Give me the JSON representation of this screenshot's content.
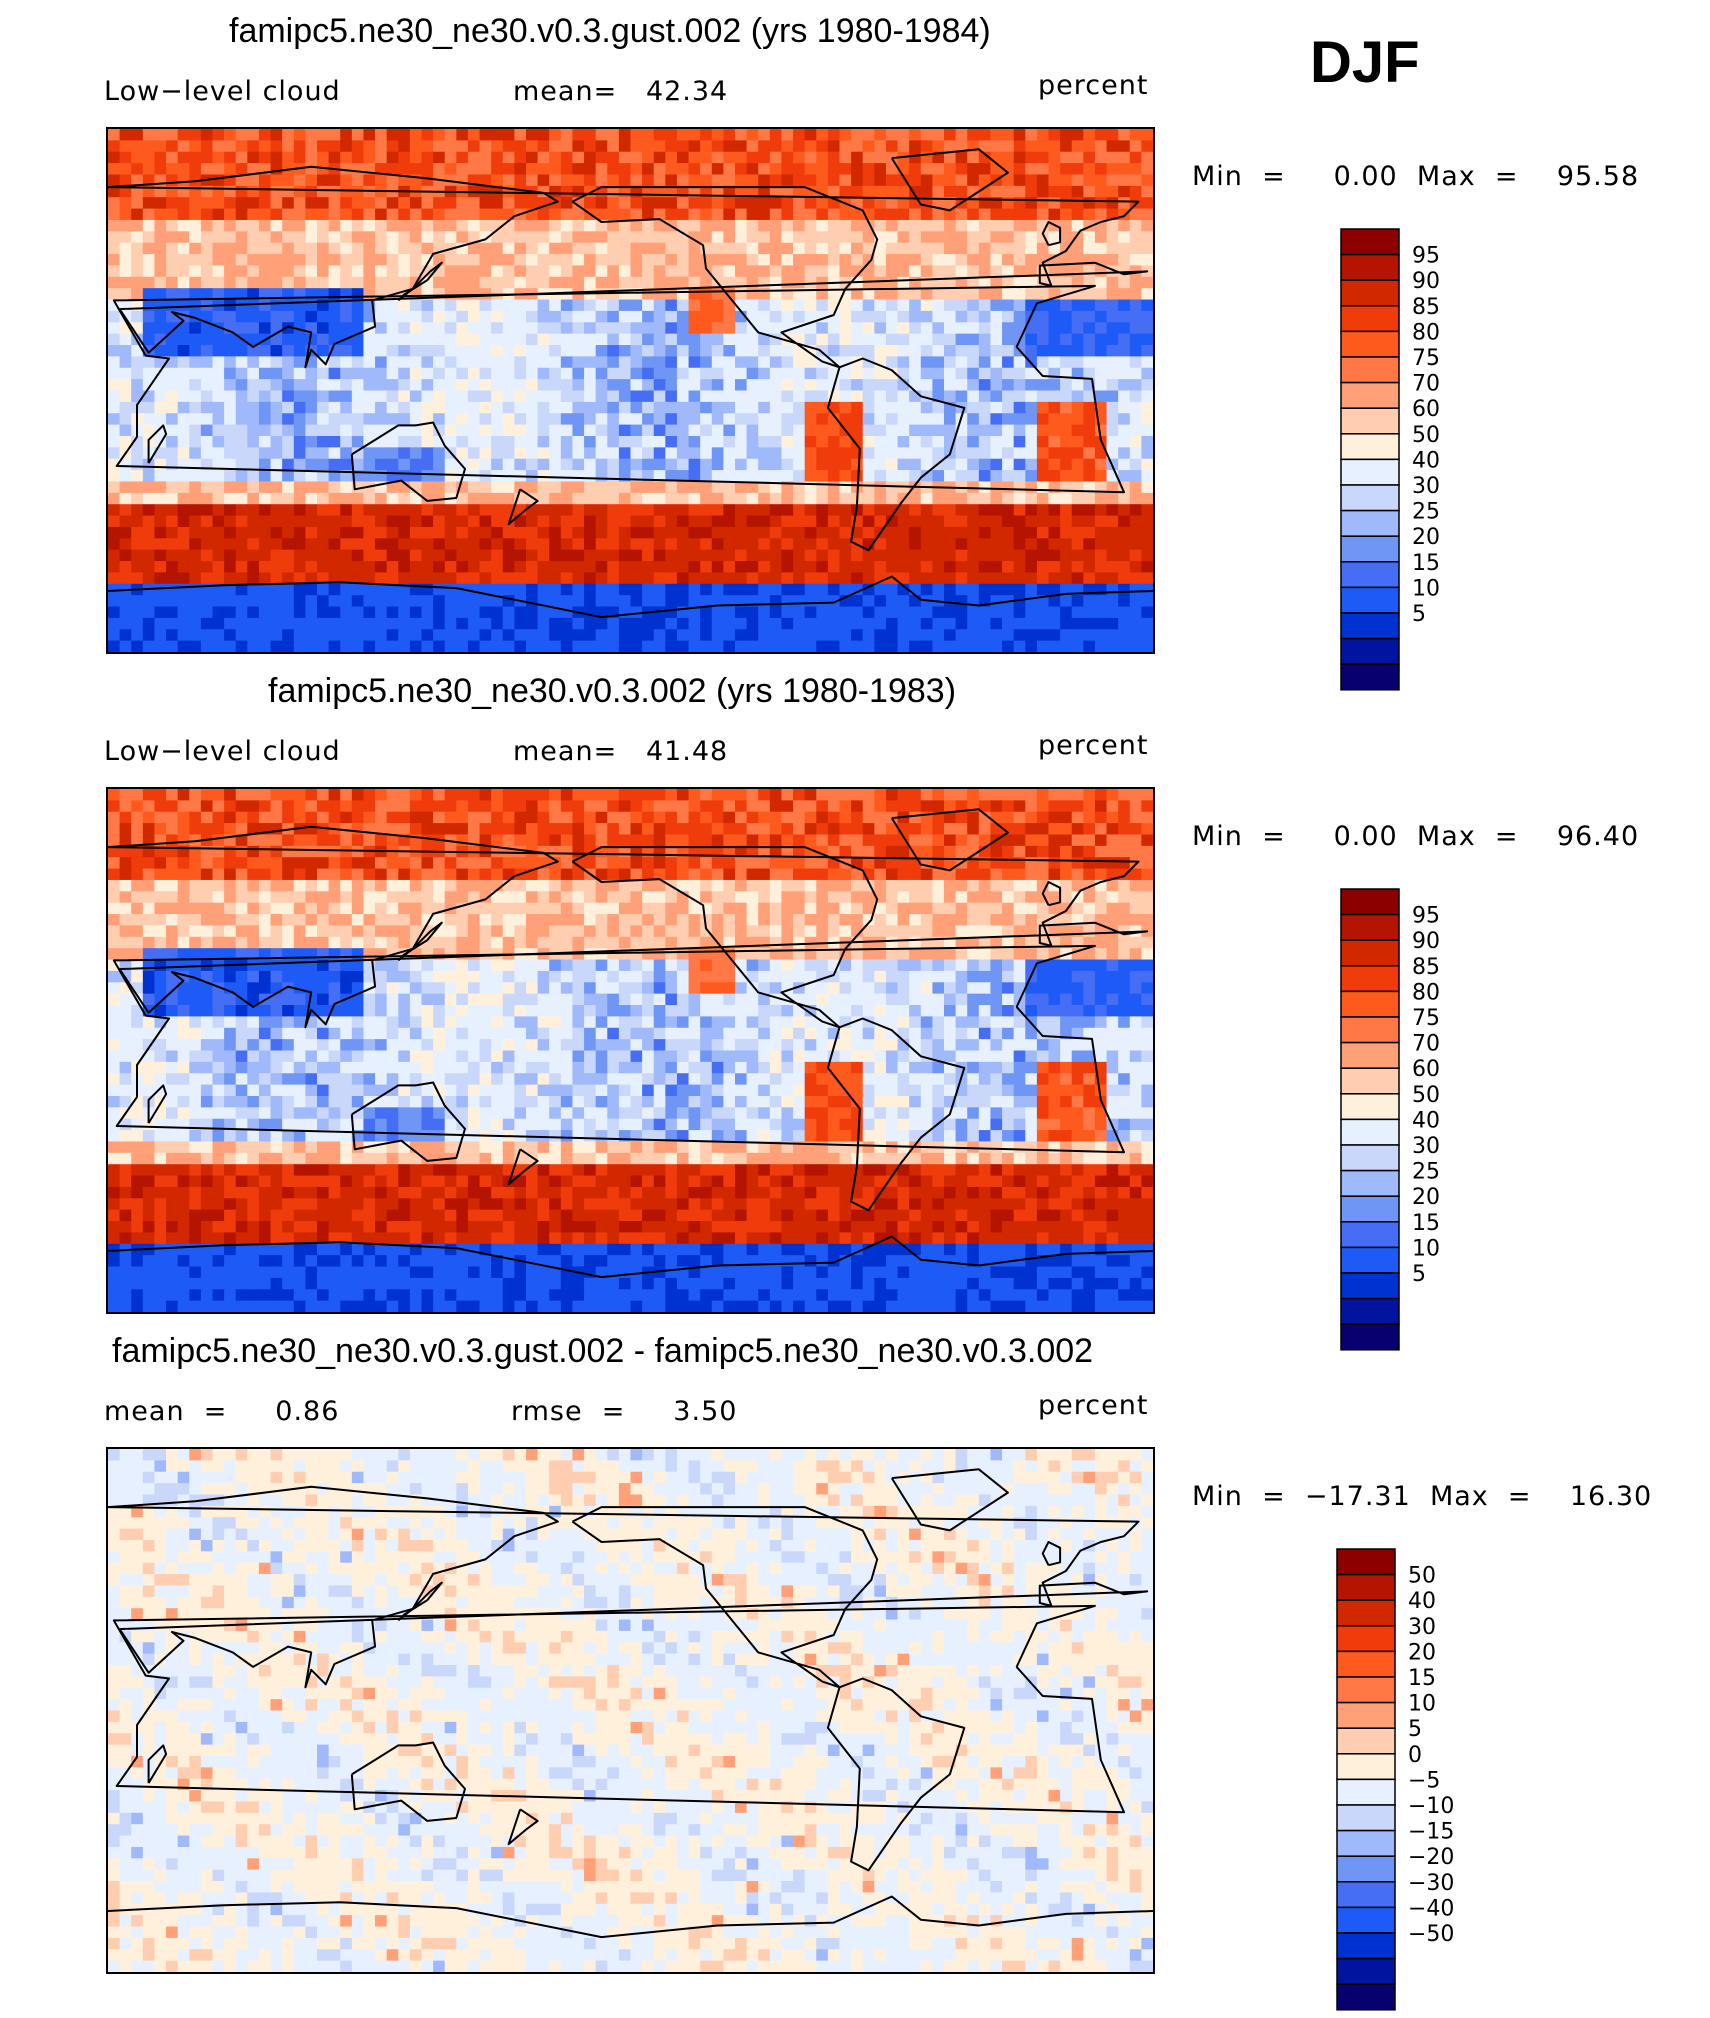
{
  "season": "DJF",
  "colors": {
    "abs": [
      "#08006e",
      "#0014a0",
      "#0032d2",
      "#1e5af5",
      "#466ef5",
      "#7096f5",
      "#a0b9fa",
      "#c8d7fa",
      "#e6f0ff",
      "#fff0dc",
      "#ffcdaf",
      "#ffa078",
      "#ff7846",
      "#ff5a1e",
      "#f03c0a",
      "#d22800",
      "#b41400",
      "#8c0000"
    ],
    "diff": [
      "#08006e",
      "#0014a0",
      "#0032d2",
      "#1e5af5",
      "#466ef5",
      "#7096f5",
      "#a0b9fa",
      "#c8d7fa",
      "#e6f0ff",
      "#fff0dc",
      "#ffcdaf",
      "#ffa078",
      "#ff7846",
      "#ff5a1e",
      "#f03c0a",
      "#d22800",
      "#b41400",
      "#8c0000"
    ]
  },
  "panels": [
    {
      "title": "famipc5.ne30_ne30.v0.3.gust.002 (yrs 1980-1984)",
      "left_label": "Low−level cloud",
      "mean_label": "mean=   42.34",
      "units": "percent",
      "minmax": "Min  =     0.00  Max  =    95.58",
      "kind": "abs"
    },
    {
      "title": "famipc5.ne30_ne30.v0.3.002 (yrs 1980-1983)",
      "left_label": "Low−level cloud",
      "mean_label": "mean=   41.48",
      "units": "percent",
      "minmax": "Min  =     0.00  Max  =    96.40",
      "kind": "abs"
    },
    {
      "title": "famipc5.ne30_ne30.v0.3.gust.002 - famipc5.ne30_ne30.v0.3.002",
      "left_label": "mean  =     0.86",
      "mean_label": "rmse  =     3.50",
      "units": "percent",
      "minmax": "Min  =  −17.31  Max  =    16.30",
      "kind": "diff"
    }
  ],
  "chart_data": [
    {
      "type": "heatmap",
      "title": "famipc5.ne30_ne30.v0.3.gust.002 (yrs 1980-1984)",
      "variable": "Low−level cloud",
      "units": "percent",
      "mean": 42.34,
      "min": 0.0,
      "max": 95.58,
      "levels": [
        5,
        10,
        15,
        20,
        25,
        30,
        40,
        50,
        60,
        70,
        75,
        80,
        85,
        90,
        95
      ]
    },
    {
      "type": "heatmap",
      "title": "famipc5.ne30_ne30.v0.3.002 (yrs 1980-1983)",
      "variable": "Low−level cloud",
      "units": "percent",
      "mean": 41.48,
      "min": 0.0,
      "max": 96.4,
      "levels": [
        5,
        10,
        15,
        20,
        25,
        30,
        40,
        50,
        60,
        70,
        75,
        80,
        85,
        90,
        95
      ]
    },
    {
      "type": "heatmap",
      "title": "famipc5.ne30_ne30.v0.3.gust.002 - famipc5.ne30_ne30.v0.3.002",
      "units": "percent",
      "mean": 0.86,
      "rmse": 3.5,
      "min": -17.31,
      "max": 16.3,
      "levels": [
        -50,
        -40,
        -30,
        -20,
        -15,
        -10,
        -5,
        0,
        5,
        10,
        15,
        20,
        30,
        40,
        50
      ]
    }
  ],
  "colorbars": {
    "abs_labels": [
      "95",
      "90",
      "85",
      "80",
      "75",
      "70",
      "60",
      "50",
      "40",
      "30",
      "25",
      "20",
      "15",
      "10",
      "5"
    ],
    "diff_labels": [
      "50",
      "40",
      "30",
      "20",
      "15",
      "10",
      "5",
      "0",
      "−5",
      "−10",
      "−15",
      "−20",
      "−30",
      "−40",
      "−50"
    ]
  }
}
